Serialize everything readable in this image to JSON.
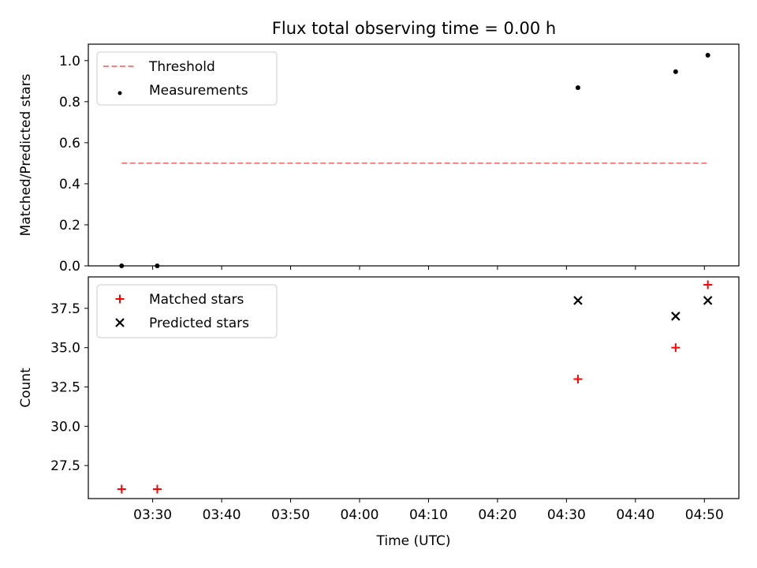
{
  "title": "Flux total observing time = 0.00 h",
  "chart_data": [
    {
      "type": "scatter",
      "panel": "top",
      "ylabel": "Matched/Predicted stars",
      "xlabel": "",
      "ylim": [
        0.0,
        1.08
      ],
      "yticks": [
        "0.0",
        "0.2",
        "0.4",
        "0.6",
        "0.8",
        "1.0"
      ],
      "ytick_values": [
        0.0,
        0.2,
        0.4,
        0.6,
        0.8,
        1.0
      ],
      "legend_position": "top-left",
      "series": [
        {
          "name": "Threshold",
          "kind": "dashed-line",
          "color": "#ff7f7f",
          "x": [
            "03:25:30",
            "04:50:30"
          ],
          "y": [
            0.5,
            0.5
          ]
        },
        {
          "name": "Measurements",
          "kind": "dot",
          "color": "#000000",
          "x": [
            "03:25:30",
            "03:30:40",
            "04:31:40",
            "04:45:50",
            "04:50:30"
          ],
          "y": [
            0.0,
            0.0,
            0.868,
            0.946,
            1.026
          ]
        }
      ]
    },
    {
      "type": "scatter",
      "panel": "bottom",
      "ylabel": "Count",
      "xlabel": "Time (UTC)",
      "ylim": [
        25.4,
        39.5
      ],
      "yticks": [
        "27.5",
        "30.0",
        "32.5",
        "35.0",
        "37.5"
      ],
      "ytick_values": [
        27.5,
        30.0,
        32.5,
        35.0,
        37.5
      ],
      "legend_position": "top-left",
      "series": [
        {
          "name": "Matched stars",
          "kind": "plus",
          "color": "#ff0000",
          "x": [
            "03:25:30",
            "03:30:40",
            "04:31:40",
            "04:45:50",
            "04:50:30"
          ],
          "y": [
            26,
            26,
            33,
            35,
            39
          ]
        },
        {
          "name": "Predicted stars",
          "kind": "cross",
          "color": "#000000",
          "x": [
            "04:31:40",
            "04:45:50",
            "04:50:30"
          ],
          "y": [
            38,
            37,
            38
          ]
        }
      ]
    }
  ],
  "x_axis": {
    "range": [
      "03:20:40",
      "04:55:00"
    ],
    "ticks": [
      "03:30",
      "03:40",
      "03:50",
      "04:00",
      "04:10",
      "04:20",
      "04:30",
      "04:40",
      "04:50"
    ]
  }
}
